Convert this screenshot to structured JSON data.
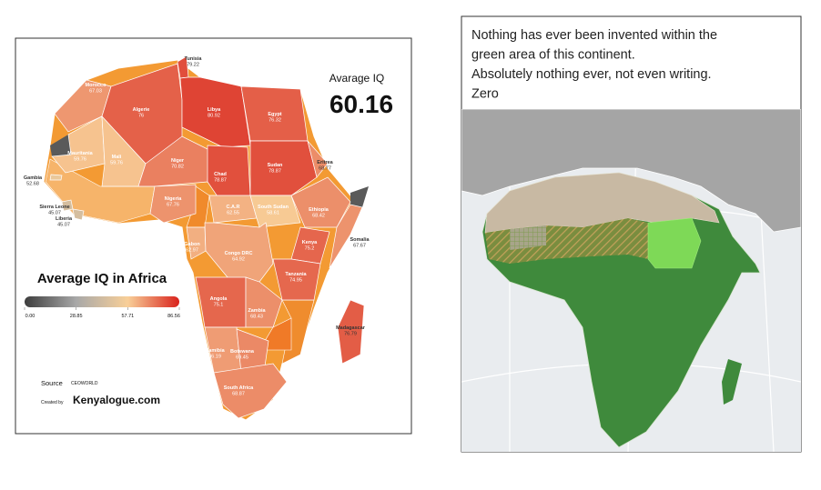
{
  "left_map": {
    "iq_label": "Avarage IQ",
    "average": 60.16,
    "legend_title": "Average IQ in Africa",
    "legend_ticks": [
      {
        "value": 0,
        "label": "0.00"
      },
      28.85,
      57.71,
      86.56
    ],
    "legend_colors": [
      "#3d3d3d",
      "#a8a8a8",
      "#f8cf98",
      "#d9221c"
    ],
    "countries": [
      {
        "name": "Tunisia",
        "value": 79.22
      },
      {
        "name": "Morocco",
        "value": 67.03
      },
      {
        "name": "Algerie",
        "value": 76
      },
      {
        "name": "Libya",
        "value": 80.92
      },
      {
        "name": "Egypt",
        "value": 76.32
      },
      {
        "name": "Mauritania",
        "value": 59.76
      },
      {
        "name": "Mali",
        "value": 59.76
      },
      {
        "name": "Niger",
        "value": 70.82
      },
      {
        "name": "Chad",
        "value": 78.87
      },
      {
        "name": "Sudan",
        "value": 78.87
      },
      {
        "name": "Eritrea",
        "value": 68.77
      },
      {
        "name": "Gambia",
        "value": 52.68
      },
      {
        "name": "Sierra Leone",
        "value": 45.07
      },
      {
        "name": "Liberia",
        "value": 45.07
      },
      {
        "name": "Nigeria",
        "value": 67.76
      },
      {
        "name": "C.A.R",
        "value": 62.55
      },
      {
        "name": "South Sudan",
        "value": 58.61
      },
      {
        "name": "Ethiopia",
        "value": 68.42
      },
      {
        "name": "Somalia",
        "value": 67.67
      },
      {
        "name": "Gabon",
        "value": 62.97
      },
      {
        "name": "Congo DRC",
        "value": 64.92
      },
      {
        "name": "Kenya",
        "value": 75.2
      },
      {
        "name": "Tanzania",
        "value": 74.95
      },
      {
        "name": "Angola",
        "value": 75.1
      },
      {
        "name": "Zambia",
        "value": 68.43
      },
      {
        "name": "Namibia",
        "value": 66.19
      },
      {
        "name": "Botswana",
        "value": 69.45
      },
      {
        "name": "South Africa",
        "value": 68.87
      },
      {
        "name": "Madagascar",
        "value": 76.79
      }
    ],
    "source_label": "Source",
    "source": "CEOWORLD",
    "created_by_label": "Created by",
    "created_by": "Kenyalogue.com"
  },
  "right_panel": {
    "caption": [
      "Nothing has ever been invented within the",
      "green area of this continent.",
      "Absolutely nothing ever, not even writing.",
      "Zero"
    ]
  }
}
